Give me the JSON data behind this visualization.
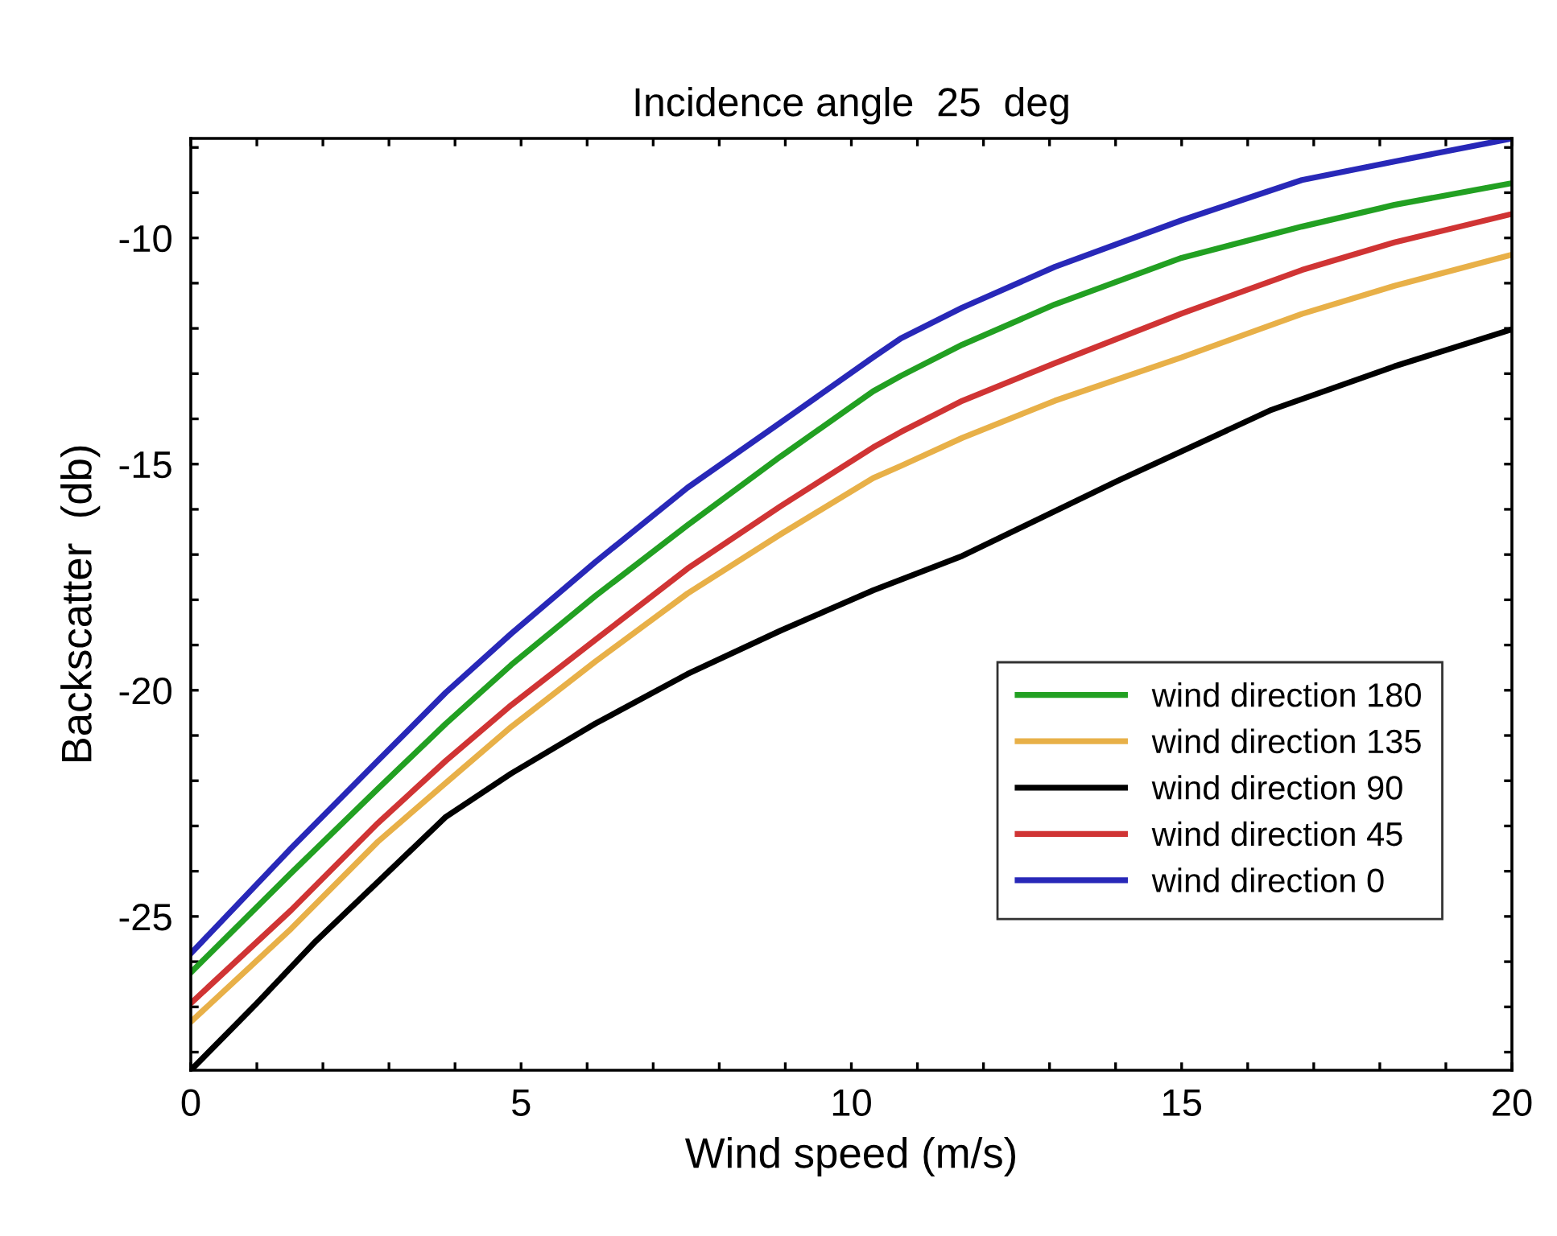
{
  "chart_data": {
    "type": "line",
    "title": "Incidence angle  25  deg",
    "xlabel": "Wind speed (m/s)",
    "ylabel": "Backscatter  (db)",
    "xlim": [
      0,
      20
    ],
    "ylim": [
      -28.4,
      -7.8
    ],
    "xticks": [
      0,
      {
        "value": 1,
        "label": null
      },
      {
        "value": 2,
        "label": null
      },
      {
        "value": 3,
        "label": null
      },
      {
        "value": 4,
        "label": null
      },
      5,
      {
        "value": 6,
        "label": null
      },
      {
        "value": 7,
        "label": null
      },
      {
        "value": 8,
        "label": null
      },
      {
        "value": 9,
        "label": null
      },
      10,
      {
        "value": 11,
        "label": null
      },
      {
        "value": 12,
        "label": null
      },
      {
        "value": 13,
        "label": null
      },
      {
        "value": 14,
        "label": null
      },
      15,
      {
        "value": 16,
        "label": null
      },
      {
        "value": 17,
        "label": null
      },
      {
        "value": 18,
        "label": null
      },
      {
        "value": 19,
        "label": null
      },
      20
    ],
    "yticks": [
      {
        "value": -28,
        "label": null
      },
      {
        "value": -27,
        "label": null
      },
      {
        "value": -26,
        "label": null
      },
      -25,
      {
        "value": -24,
        "label": null
      },
      {
        "value": -23,
        "label": null
      },
      {
        "value": -22,
        "label": null
      },
      {
        "value": -21,
        "label": null
      },
      -20,
      {
        "value": -19,
        "label": null
      },
      {
        "value": -18,
        "label": null
      },
      {
        "value": -17,
        "label": null
      },
      {
        "value": -16,
        "label": null
      },
      -15,
      {
        "value": -14,
        "label": null
      },
      {
        "value": -13,
        "label": null
      },
      {
        "value": -12,
        "label": null
      },
      {
        "value": -11,
        "label": null
      },
      -10,
      {
        "value": -9,
        "label": null
      },
      {
        "value": -8,
        "label": null
      }
    ],
    "x": [
      0,
      1.52,
      2.83,
      3.86,
      4.85,
      6.12,
      7.52,
      8.93,
      10.33,
      10.75,
      11.68,
      13.08,
      15,
      16.82,
      18.22,
      20
    ],
    "grid": false,
    "legend": "right",
    "marker": "none",
    "line_style": "solid",
    "series": [
      {
        "name": "wind direction 180",
        "color": "#22a022",
        "values": [
          -26.24,
          -24.04,
          -22.18,
          -20.74,
          -19.44,
          -17.92,
          -16.35,
          -14.83,
          -13.39,
          -13.05,
          -12.36,
          -11.47,
          -10.44,
          -9.75,
          -9.27,
          -8.79
        ]
      },
      {
        "name": "wind direction 135",
        "color": "#e8b048",
        "values": [
          -27.33,
          -25.27,
          -23.35,
          -22.05,
          -20.81,
          -19.37,
          -17.86,
          -16.55,
          -15.31,
          -15.04,
          -14.42,
          -13.6,
          -12.64,
          -11.68,
          -11.06,
          -10.37
        ]
      },
      {
        "name": "wind direction 90",
        "color": "#000000",
        "x": [
          0,
          1,
          1.89,
          2.83,
          3.86,
          4.85,
          6.12,
          7.52,
          8.93,
          10.33,
          11.68,
          14.02,
          16.36,
          18.22,
          20
        ],
        "values": [
          -28.4,
          -26.92,
          -25.55,
          -24.24,
          -22.8,
          -21.84,
          -20.74,
          -19.64,
          -18.68,
          -17.79,
          -17.03,
          -15.38,
          -13.8,
          -12.84,
          -12.02
        ]
      },
      {
        "name": "wind direction 45",
        "color": "#d03434",
        "values": [
          -26.92,
          -24.86,
          -22.94,
          -21.56,
          -20.33,
          -18.89,
          -17.31,
          -15.93,
          -14.63,
          -14.29,
          -13.6,
          -12.77,
          -11.67,
          -10.71,
          -10.1,
          -9.47
        ]
      },
      {
        "name": "wind direction 0",
        "color": "#2828b8",
        "values": [
          -25.82,
          -23.49,
          -21.56,
          -20.05,
          -18.75,
          -17.17,
          -15.52,
          -14.08,
          -12.64,
          -12.22,
          -11.54,
          -10.64,
          -9.61,
          -8.72,
          -8.31,
          -7.8
        ]
      }
    ]
  }
}
